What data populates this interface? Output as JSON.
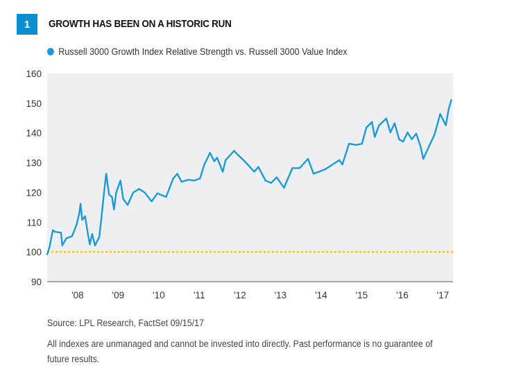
{
  "header": {
    "number": "1",
    "title": "GROWTH HAS BEEN ON A HISTORIC RUN"
  },
  "colors": {
    "accent": "#0b8fd0",
    "series": "#1a9ad6",
    "reference_line": "#f2c530",
    "plot_background": "#eeeff0"
  },
  "chart_data": {
    "type": "line",
    "title": "GROWTH HAS BEEN ON A HISTORIC RUN",
    "xlabel": "",
    "ylabel": "",
    "ylim": [
      90,
      160
    ],
    "xlim": [
      "2007-10-01",
      "2017-09-30"
    ],
    "yticks": [
      "90",
      "100",
      "110",
      "120",
      "130",
      "140",
      "150",
      "160"
    ],
    "xticks": [
      "'08",
      "'09",
      "'10",
      "'11",
      "'12",
      "'13",
      "'14",
      "'15",
      "'16",
      "'17"
    ],
    "grid": false,
    "legend": "top-left",
    "reference_line": {
      "y": 100,
      "style": "dotted"
    },
    "series": [
      {
        "name": "Russell 3000 Growth Index Relative Strength vs. Russell 3000 Value Index",
        "x": [
          "2007-10-01",
          "2007-10-21",
          "2007-11-21",
          "2007-12-11",
          "2008-02-02",
          "2008-02-14",
          "2008-03-22",
          "2008-05-12",
          "2008-06-20",
          "2008-07-16",
          "2008-07-28",
          "2008-08-11",
          "2008-09-06",
          "2008-10-02",
          "2008-10-19",
          "2008-11-09",
          "2008-12-04",
          "2009-01-12",
          "2009-01-29",
          "2009-02-24",
          "2009-03-15",
          "2009-04-10",
          "2009-05-06",
          "2009-05-25",
          "2009-06-13",
          "2009-07-21",
          "2009-08-16",
          "2009-09-24",
          "2009-11-14",
          "2010-01-05",
          "2010-02-24",
          "2010-04-28",
          "2010-06-19",
          "2010-09-05",
          "2010-11-08",
          "2010-12-15",
          "2011-01-23",
          "2011-03-26",
          "2011-05-16",
          "2011-07-07",
          "2011-08-15",
          "2011-10-05",
          "2011-11-13",
          "2011-12-08",
          "2012-01-28",
          "2012-02-23",
          "2012-05-09",
          "2012-06-17",
          "2012-08-20",
          "2012-11-06",
          "2012-12-14",
          "2013-02-16",
          "2013-04-07",
          "2013-05-27",
          "2013-08-01",
          "2013-10-16",
          "2013-12-19",
          "2014-03-05",
          "2014-04-25",
          "2014-06-15",
          "2014-08-06",
          "2014-09-26",
          "2014-12-12",
          "2015-01-08",
          "2015-03-10",
          "2015-05-13",
          "2015-07-04",
          "2015-08-12",
          "2015-10-02",
          "2015-10-27",
          "2015-12-05",
          "2016-02-08",
          "2016-03-16",
          "2016-04-23",
          "2016-06-02",
          "2016-07-09",
          "2016-08-17",
          "2016-09-25",
          "2016-11-03",
          "2016-12-11",
          "2017-01-06",
          "2017-03-09",
          "2017-04-17",
          "2017-06-07",
          "2017-07-27",
          "2017-08-22",
          "2017-09-15"
        ],
        "values": [
          99.2,
          101.5,
          107.3,
          106.8,
          106.5,
          102.2,
          104.6,
          105.3,
          109,
          113,
          116.2,
          110.8,
          112,
          106,
          102.6,
          106,
          102.2,
          105,
          110.8,
          120,
          126.3,
          119.3,
          118.5,
          114.3,
          120,
          124,
          117.8,
          115.8,
          120,
          121.2,
          120,
          117,
          119.7,
          118.5,
          124.7,
          126.3,
          123.6,
          124.3,
          124,
          124.7,
          129.4,
          133.3,
          130.5,
          131.7,
          127,
          130.9,
          134,
          132.5,
          130.2,
          127,
          128.6,
          124,
          123.2,
          125.1,
          121.6,
          128.2,
          128.2,
          131.3,
          126.3,
          127,
          127.8,
          129,
          130.9,
          129.4,
          136.4,
          136,
          136.4,
          141.8,
          143.7,
          138.7,
          142.6,
          144.9,
          140.2,
          143.3,
          137.9,
          137.1,
          140.2,
          137.9,
          139.8,
          135.6,
          131.3,
          136.4,
          139.5,
          146.4,
          142.6,
          148,
          151.1
        ]
      }
    ]
  },
  "footer": {
    "source": "Source: LPL Research, FactSet   09/15/17",
    "disclaimer_line1": "All indexes are unmanaged and cannot be invested into directly. Past performance is no guarantee of",
    "disclaimer_line2": "future results."
  }
}
